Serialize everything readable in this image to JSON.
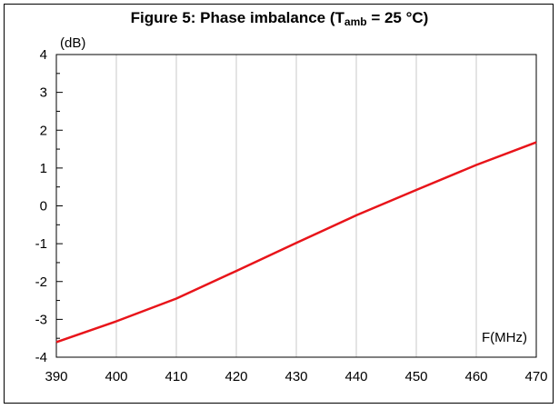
{
  "chart_data": {
    "type": "line",
    "title_prefix": "Figure 5: Phase imbalance (T",
    "title_sub": "amb",
    "title_suffix": " = 25 °C)",
    "ylabel": "(dB)",
    "xlabel": "F(MHz)",
    "xlim": [
      390,
      470
    ],
    "ylim": [
      -4,
      4
    ],
    "x_ticks": [
      "390",
      "400",
      "410",
      "420",
      "430",
      "440",
      "450",
      "460",
      "470"
    ],
    "y_ticks": [
      "4",
      "3",
      "2",
      "1",
      "0",
      "-1",
      "-2",
      "-3",
      "-4"
    ],
    "grid": true,
    "series": [
      {
        "color": "#e8141a",
        "x": [
          390,
          400,
          410,
          420,
          430,
          440,
          450,
          460,
          470
        ],
        "y": [
          -3.6,
          -3.05,
          -2.45,
          -1.72,
          -0.98,
          -0.25,
          0.42,
          1.08,
          1.68
        ]
      }
    ]
  }
}
